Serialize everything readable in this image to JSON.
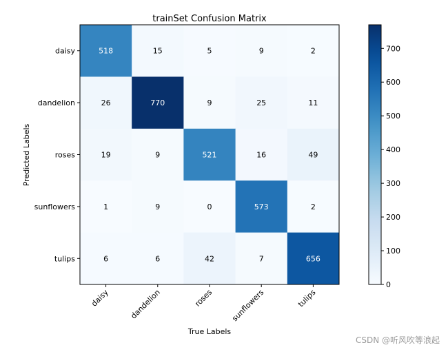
{
  "chart_data": {
    "type": "heatmap",
    "title": "trainSet Confusion Matrix",
    "xlabel": "True Labels",
    "ylabel": "Predicted Labels",
    "x_categories": [
      "daisy",
      "dandelion",
      "roses",
      "sunflowers",
      "tulips"
    ],
    "y_categories": [
      "daisy",
      "dandelion",
      "roses",
      "sunflowers",
      "tulips"
    ],
    "values": [
      [
        518,
        15,
        5,
        9,
        2
      ],
      [
        26,
        770,
        9,
        25,
        11
      ],
      [
        19,
        9,
        521,
        16,
        49
      ],
      [
        1,
        9,
        0,
        573,
        2
      ],
      [
        6,
        6,
        42,
        7,
        656
      ]
    ],
    "vmin": 0,
    "vmax": 770,
    "colormap": "Blues",
    "colorbar_ticks": [
      0,
      100,
      200,
      300,
      400,
      500,
      600,
      700
    ],
    "text_color_dark": "#000000",
    "text_color_light": "#ffffff"
  },
  "watermark": "CSDN @听风吹等浪起"
}
